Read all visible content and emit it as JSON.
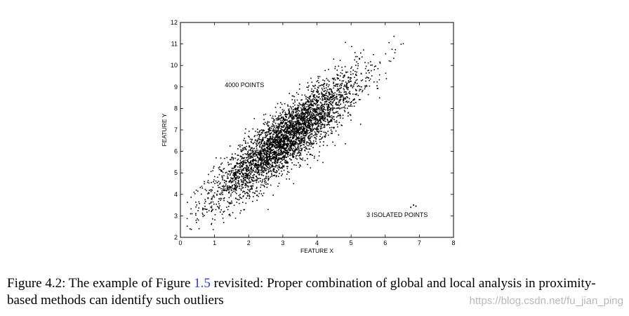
{
  "chart_data": {
    "type": "scatter",
    "title": "",
    "xlabel": "FEATURE X",
    "ylabel": "FEATURE Y",
    "xlim": [
      0,
      8
    ],
    "ylim": [
      2,
      12
    ],
    "x_ticks": [
      "0",
      "1",
      "2",
      "3",
      "4",
      "5",
      "6",
      "7",
      "8"
    ],
    "y_ticks": [
      "2",
      "3",
      "4",
      "5",
      "6",
      "7",
      "8",
      "9",
      "10",
      "11",
      "12"
    ],
    "grid": false,
    "main_cluster": {
      "n_points": 4000,
      "mean": [
        3.1,
        6.6
      ],
      "std": [
        1.05,
        1.45
      ],
      "correlation": 0.88
    },
    "outliers": [
      {
        "x": 6.75,
        "y": 3.4
      },
      {
        "x": 6.83,
        "y": 3.5
      },
      {
        "x": 6.9,
        "y": 3.45
      }
    ],
    "annotations": [
      {
        "text": "4000 POINTS",
        "x": 1.3,
        "y": 9.0
      },
      {
        "text": "3 ISOLATED POINTS",
        "x": 5.45,
        "y": 2.95
      }
    ]
  },
  "caption": {
    "prefix": "Figure 4.2: The example of Figure ",
    "ref": "1.5",
    "suffix": " revisited: Proper combination of global and local analysis in proximity-based methods can identify such outliers"
  },
  "watermark": "https://blog.csdn.net/fu_jian_ping"
}
